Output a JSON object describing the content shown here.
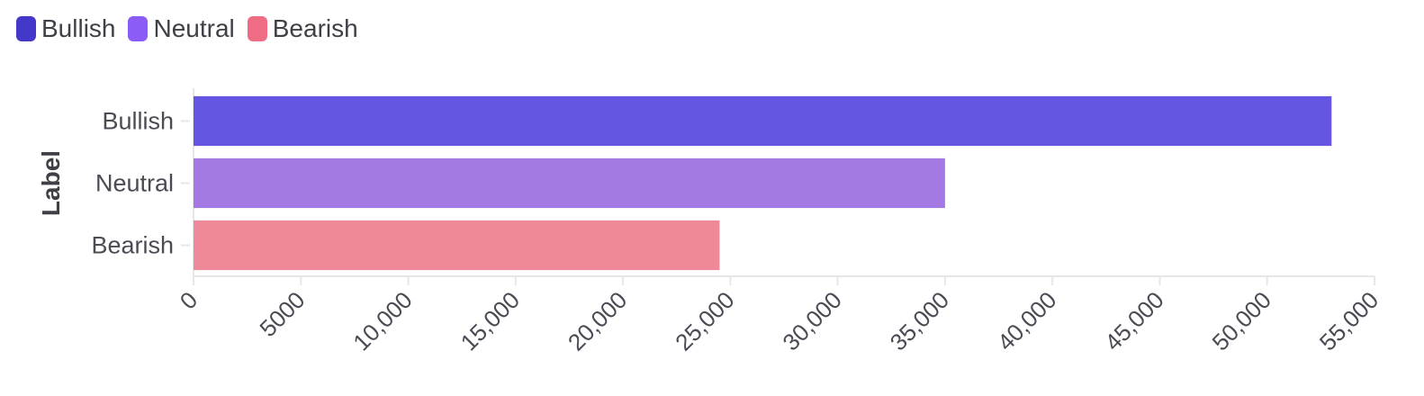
{
  "legend": {
    "items": [
      {
        "label": "Bullish",
        "color": "#4338ca"
      },
      {
        "label": "Neutral",
        "color": "#8b5cf6"
      },
      {
        "label": "Bearish",
        "color": "#f06b84"
      }
    ]
  },
  "chart_data": {
    "type": "bar",
    "orientation": "horizontal",
    "ylabel": "Label",
    "xlabel": "",
    "categories": [
      "Bullish",
      "Neutral",
      "Bearish"
    ],
    "values": [
      53000,
      35000,
      24500
    ],
    "bar_colors": [
      "#6555e3",
      "#a479e4",
      "#ef8999"
    ],
    "xlim": [
      0,
      55000
    ],
    "xticks": [
      0,
      5000,
      10000,
      15000,
      20000,
      25000,
      30000,
      35000,
      40000,
      45000,
      50000,
      55000
    ],
    "xtick_labels": [
      "0",
      "5000",
      "10,000",
      "15,000",
      "20,000",
      "25,000",
      "30,000",
      "35,000",
      "40,000",
      "45,000",
      "50,000",
      "55,000"
    ],
    "grid": false,
    "legend_position": "top-left"
  }
}
